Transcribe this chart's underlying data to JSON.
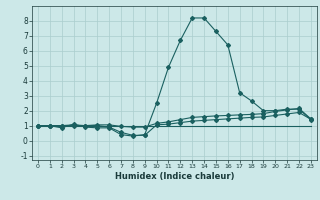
{
  "title": "",
  "xlabel": "Humidex (Indice chaleur)",
  "xlim": [
    -0.5,
    23.5
  ],
  "ylim": [
    -1.3,
    9.0
  ],
  "xticks": [
    0,
    1,
    2,
    3,
    4,
    5,
    6,
    7,
    8,
    9,
    10,
    11,
    12,
    13,
    14,
    15,
    16,
    17,
    18,
    19,
    20,
    21,
    22,
    23
  ],
  "yticks": [
    -1,
    0,
    1,
    2,
    3,
    4,
    5,
    6,
    7,
    8
  ],
  "bg_color": "#cce8e8",
  "grid_color": "#aacece",
  "line_color": "#1a6060",
  "line1_x": [
    0,
    1,
    2,
    3,
    4,
    5,
    6,
    7,
    8,
    9,
    10,
    11,
    12,
    13,
    14,
    15,
    16,
    17,
    18,
    19,
    20,
    21,
    22,
    23
  ],
  "line1_y": [
    1.0,
    1.0,
    0.85,
    1.1,
    0.9,
    0.85,
    0.85,
    0.4,
    0.3,
    0.4,
    2.5,
    4.9,
    6.7,
    8.2,
    8.2,
    7.3,
    6.4,
    3.2,
    2.65,
    2.0,
    2.0,
    2.1,
    2.1,
    1.4
  ],
  "line2_x": [
    0,
    1,
    2,
    3,
    4,
    5,
    6,
    7,
    8,
    9,
    10,
    11,
    12,
    13,
    14,
    15,
    16,
    17,
    18,
    19,
    20,
    21,
    22,
    23
  ],
  "line2_y": [
    1.0,
    1.0,
    1.0,
    1.05,
    1.0,
    1.05,
    1.05,
    0.95,
    0.9,
    0.9,
    1.15,
    1.25,
    1.4,
    1.55,
    1.6,
    1.65,
    1.68,
    1.72,
    1.75,
    1.8,
    1.95,
    2.05,
    2.15,
    1.45
  ],
  "line3_x": [
    0,
    1,
    2,
    3,
    4,
    5,
    6,
    7,
    8,
    9,
    10,
    11,
    12,
    13,
    14,
    15,
    16,
    17,
    18,
    19,
    20,
    21,
    22,
    23
  ],
  "line3_y": [
    1.0,
    1.0,
    1.0,
    1.0,
    1.0,
    1.0,
    0.9,
    0.55,
    0.35,
    0.35,
    1.05,
    1.1,
    1.2,
    1.3,
    1.35,
    1.4,
    1.45,
    1.5,
    1.55,
    1.58,
    1.68,
    1.78,
    1.88,
    1.42
  ],
  "line4_x": [
    0,
    23
  ],
  "line4_y": [
    1.0,
    1.0
  ]
}
